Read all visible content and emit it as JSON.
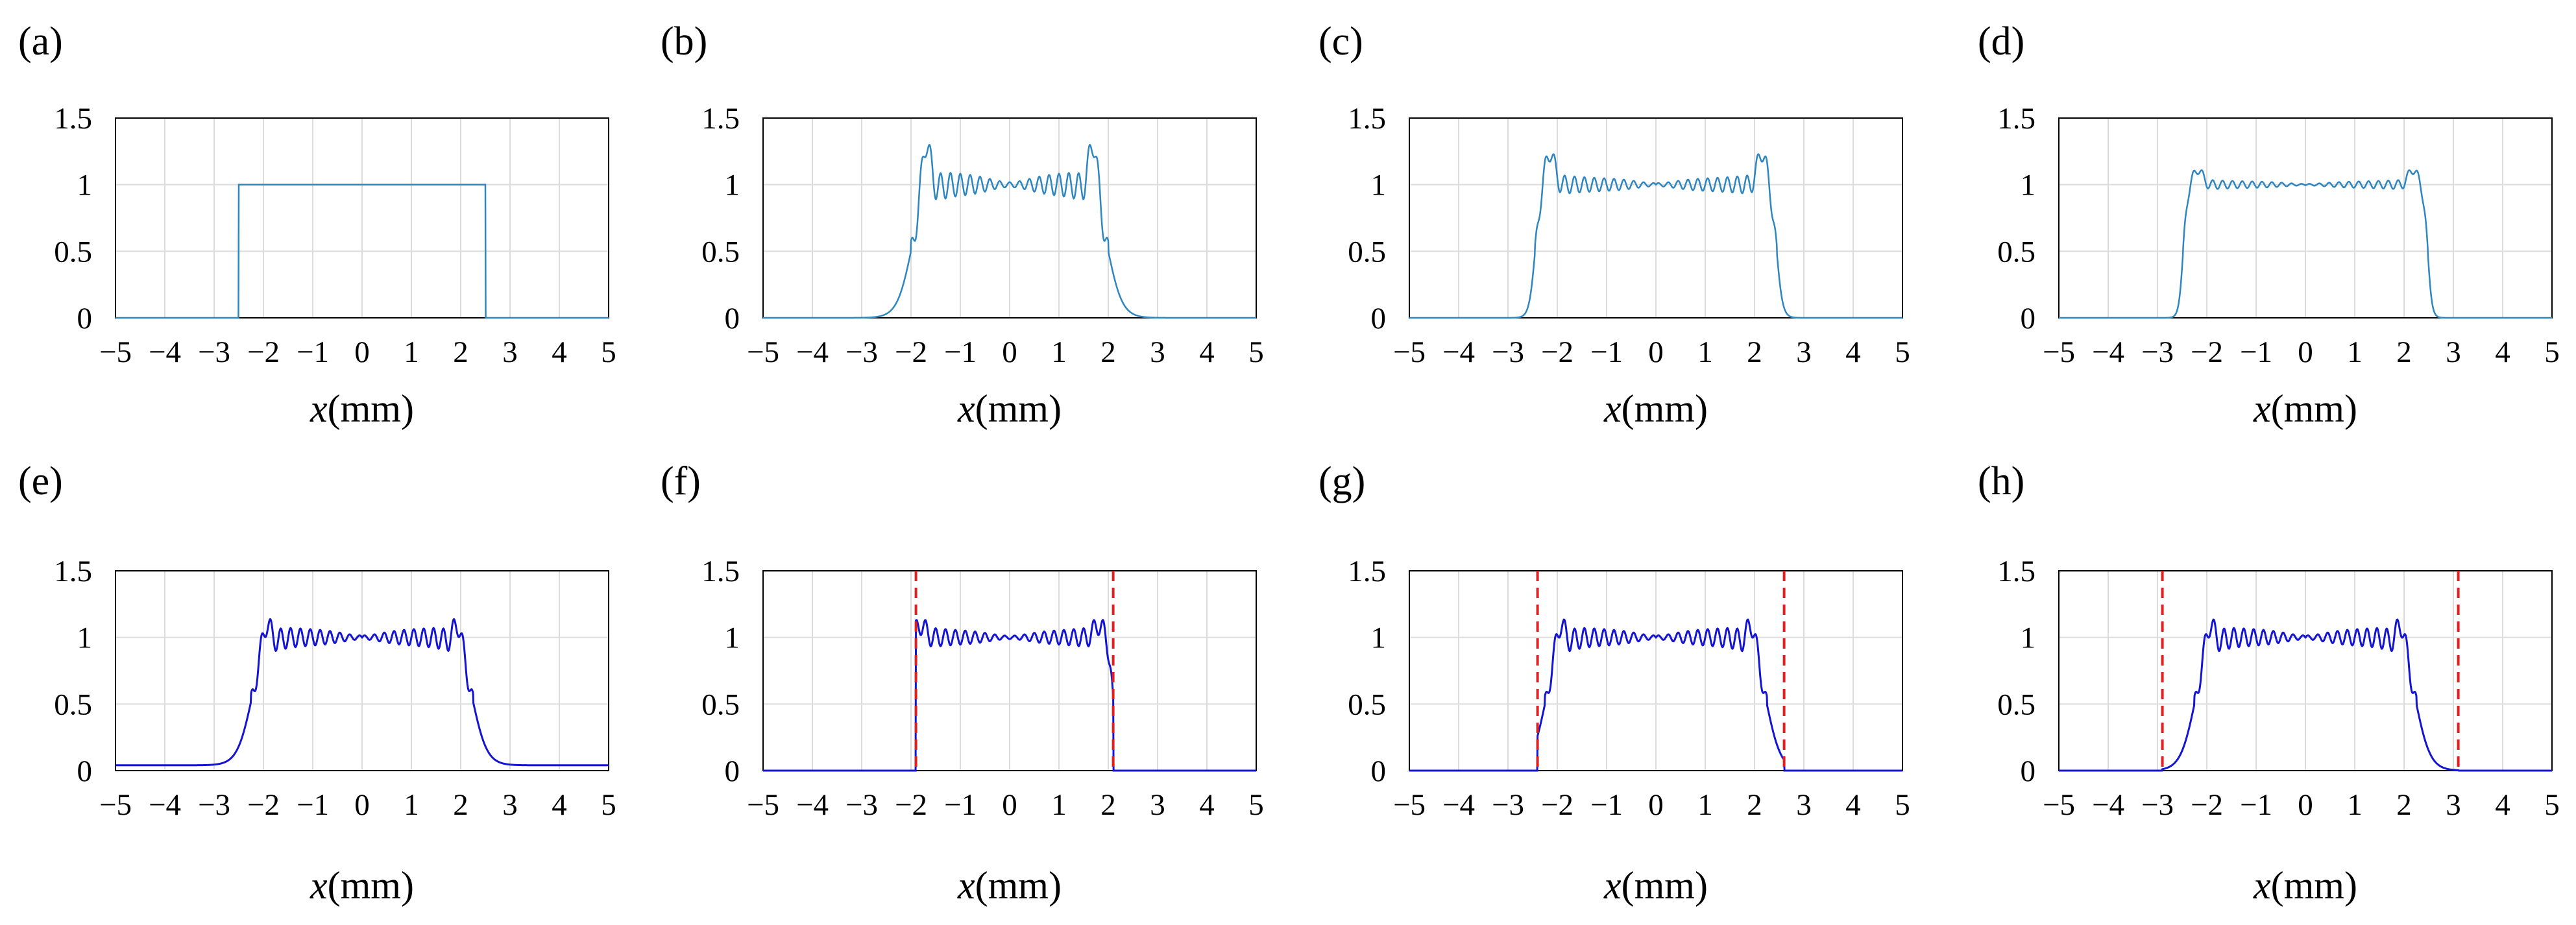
{
  "figure": {
    "title": ""
  },
  "colors": {
    "light_curve": "#2E86C1",
    "dark_curve": "#1414D2",
    "boundary": "#E02020",
    "grid": "#DCDCDC"
  },
  "chart_data": [
    {
      "panel": "(a)",
      "type": "line",
      "xlabel": "x(mm)",
      "xlim": [
        -5,
        5
      ],
      "ylim": [
        0,
        1.5
      ],
      "xticks": [
        "−5",
        "−4",
        "−3",
        "−2",
        "−1",
        "0",
        "1",
        "2",
        "3",
        "4",
        "5"
      ],
      "yticks": [
        "0",
        "0.5",
        "1",
        "1.5"
      ],
      "style": "light",
      "profile": {
        "kind": "rect",
        "edge": 2.5,
        "hwAmp": 0,
        "ov": 0,
        "osc": 0,
        "tail": 0
      },
      "boundaries": []
    },
    {
      "panel": "(b)",
      "type": "line",
      "xlabel": "x(mm)",
      "xlim": [
        -5,
        5
      ],
      "ylim": [
        0,
        1.5
      ],
      "xticks": [
        "−5",
        "−4",
        "−3",
        "−2",
        "−1",
        "0",
        "1",
        "2",
        "3",
        "4",
        "5"
      ],
      "yticks": [
        "0",
        "0.5",
        "1",
        "1.5"
      ],
      "style": "light",
      "profile": {
        "kind": "smooth",
        "edge": 2.0,
        "hwAmp": 0.45,
        "ov": 0.43,
        "osc": 0.15,
        "tail": 0
      },
      "boundaries": []
    },
    {
      "panel": "(c)",
      "type": "line",
      "xlabel": "x(mm)",
      "xlim": [
        -5,
        5
      ],
      "ylim": [
        0,
        1.5
      ],
      "xticks": [
        "−5",
        "−4",
        "−3",
        "−2",
        "−1",
        "0",
        "1",
        "2",
        "3",
        "4",
        "5"
      ],
      "yticks": [
        "0",
        "0.5",
        "1",
        "1.5"
      ],
      "style": "light",
      "profile": {
        "kind": "smooth",
        "edge": 2.45,
        "hwAmp": 0.1,
        "ov": 0.26,
        "osc": 0.1,
        "tail": 0
      },
      "boundaries": []
    },
    {
      "panel": "(d)",
      "type": "line",
      "xlabel": "x(mm)",
      "xlim": [
        -5,
        5
      ],
      "ylim": [
        0,
        1.5
      ],
      "xticks": [
        "−5",
        "−4",
        "−3",
        "−2",
        "−1",
        "0",
        "1",
        "2",
        "3",
        "4",
        "5"
      ],
      "yticks": [
        "0",
        "0.5",
        "1",
        "1.5"
      ],
      "style": "light",
      "profile": {
        "kind": "smooth",
        "edge": 2.48,
        "hwAmp": 0.03,
        "ov": 0.12,
        "osc": 0.05,
        "tail": 0
      },
      "boundaries": []
    },
    {
      "panel": "(e)",
      "type": "line",
      "xlabel": "x(mm)",
      "xlim": [
        -5,
        5
      ],
      "ylim": [
        0,
        1.5
      ],
      "xticks": [
        "−5",
        "−4",
        "−3",
        "−2",
        "−1",
        "0",
        "1",
        "2",
        "3",
        "4",
        "5"
      ],
      "yticks": [
        "0",
        "0.5",
        "1",
        "1.5"
      ],
      "style": "dark",
      "profile": {
        "kind": "smooth",
        "edge": 2.25,
        "hwAmp": 0.45,
        "ov": 0.2,
        "osc": 0.12,
        "tail": 0.04
      },
      "boundaries": []
    },
    {
      "panel": "(f)",
      "type": "line",
      "xlabel": "x(mm)",
      "xlim": [
        -5,
        5
      ],
      "ylim": [
        0,
        1.5
      ],
      "xticks": [
        "−5",
        "−4",
        "−3",
        "−2",
        "−1",
        "0",
        "1",
        "2",
        "3",
        "4",
        "5"
      ],
      "yticks": [
        "0",
        "0.5",
        "1",
        "1.5"
      ],
      "style": "dark",
      "profile": {
        "kind": "smooth",
        "edge": 2.1,
        "hwAmp": 0.03,
        "ov": 0.1,
        "osc": 0.1,
        "tail": 0,
        "cut": [
          -1.9,
          2.1
        ]
      },
      "boundaries": [
        -1.9,
        2.1
      ]
    },
    {
      "panel": "(g)",
      "type": "line",
      "xlabel": "x(mm)",
      "xlim": [
        -5,
        5
      ],
      "ylim": [
        0,
        1.5
      ],
      "xticks": [
        "−5",
        "−4",
        "−3",
        "−2",
        "−1",
        "0",
        "1",
        "2",
        "3",
        "4",
        "5"
      ],
      "yticks": [
        "0",
        "0.5",
        "1",
        "1.5"
      ],
      "style": "dark",
      "profile": {
        "kind": "smooth",
        "edge": 2.25,
        "hwAmp": 0.45,
        "ov": 0.2,
        "osc": 0.12,
        "tail": 0,
        "cut": [
          -2.4,
          2.6
        ]
      },
      "boundaries": [
        -2.4,
        2.6
      ]
    },
    {
      "panel": "(h)",
      "type": "line",
      "xlabel": "x(mm)",
      "xlim": [
        -5,
        5
      ],
      "ylim": [
        0,
        1.5
      ],
      "xticks": [
        "−5",
        "−4",
        "−3",
        "−2",
        "−1",
        "0",
        "1",
        "2",
        "3",
        "4",
        "5"
      ],
      "yticks": [
        "0",
        "0.5",
        "1",
        "1.5"
      ],
      "style": "dark",
      "profile": {
        "kind": "smooth",
        "edge": 2.25,
        "hwAmp": 0.45,
        "ov": 0.2,
        "osc": 0.12,
        "tail": 0,
        "cut": [
          -2.9,
          3.1
        ]
      },
      "boundaries": [
        -2.9,
        3.1
      ]
    }
  ]
}
